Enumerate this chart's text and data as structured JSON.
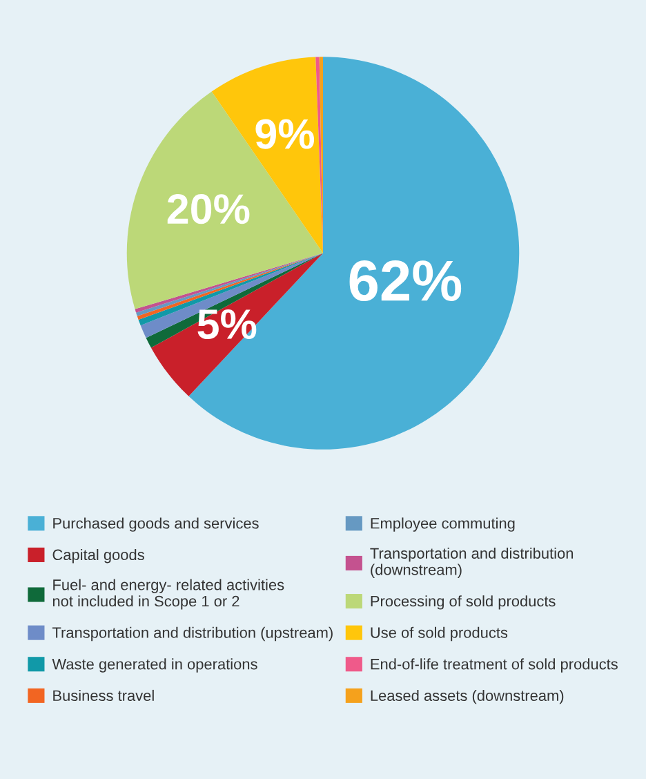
{
  "chart_data": {
    "type": "pie",
    "categories": [
      "Purchased goods and services",
      "Capital goods",
      "Fuel- and energy- related activities\nnot included in Scope 1 or 2",
      "Transportation and distribution (upstream)",
      "Waste generated in operations",
      "Business travel",
      "Employee commuting",
      "Transportation and distribution\n(downstream)",
      "Processing of sold products",
      "Use of sold products",
      "End-of-life treatment of sold products",
      "Leased assets (downstream)"
    ],
    "values": [
      62,
      5,
      0.9,
      1.1,
      0.5,
      0.3,
      0.3,
      0.3,
      20,
      9,
      0.3,
      0.3
    ],
    "colors": [
      "#4ab0d6",
      "#c9202a",
      "#0f6a3a",
      "#6e8cc8",
      "#1199a8",
      "#f26522",
      "#6699c2",
      "#c4528f",
      "#bcd878",
      "#ffc60b",
      "#ef5a8a",
      "#f5a11c"
    ],
    "value_labels": [
      "62%",
      "5%",
      null,
      null,
      null,
      null,
      null,
      null,
      "20%",
      "9%",
      null,
      null
    ],
    "legend": "bottom"
  }
}
